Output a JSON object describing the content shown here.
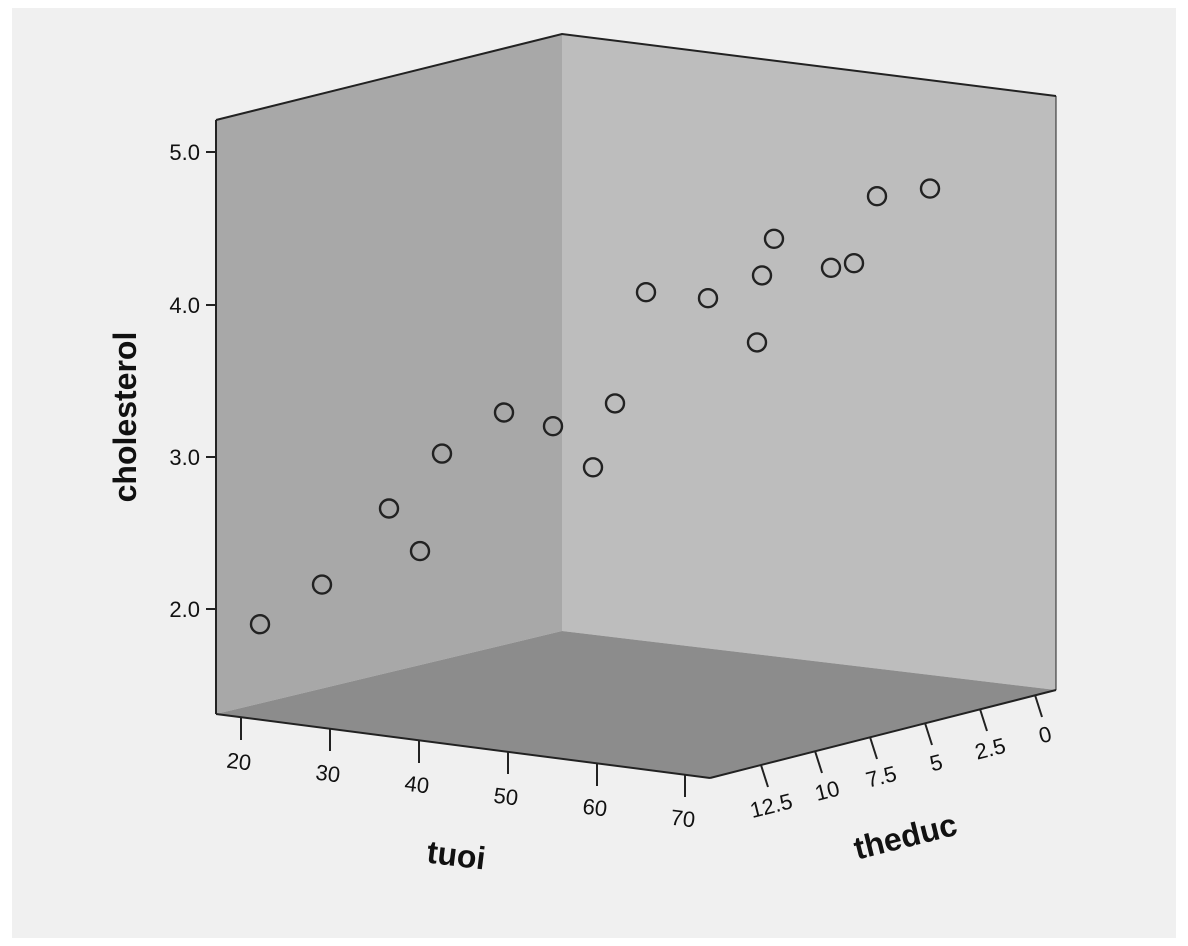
{
  "chart_data": {
    "type": "scatter3d",
    "title": "",
    "xlabel": "tuoi",
    "ylabel": "theduc",
    "zlabel": "cholesterol",
    "xlim": [
      15,
      75
    ],
    "ylim": [
      0,
      15
    ],
    "zlim": [
      1.5,
      5.2
    ],
    "x_ticks": [
      "20",
      "30",
      "40",
      "50",
      "60",
      "70"
    ],
    "y_ticks": [
      "12.5",
      "10",
      "7.5",
      "5",
      "2.5",
      "0"
    ],
    "z_ticks": [
      "2.0",
      "3.0",
      "4.0",
      "5.0"
    ],
    "grid": false,
    "series": [
      {
        "points": [
          {
            "screen_x": 260,
            "z": 1.9
          },
          {
            "screen_x": 322,
            "z": 2.16
          },
          {
            "screen_x": 389,
            "z": 2.66
          },
          {
            "screen_x": 420,
            "z": 2.38
          },
          {
            "screen_x": 442,
            "z": 3.02
          },
          {
            "screen_x": 504,
            "z": 3.29
          },
          {
            "screen_x": 553,
            "z": 3.2
          },
          {
            "screen_x": 593,
            "z": 2.93
          },
          {
            "screen_x": 615,
            "z": 3.35
          },
          {
            "screen_x": 646,
            "z": 4.08
          },
          {
            "screen_x": 708,
            "z": 4.04
          },
          {
            "screen_x": 757,
            "z": 3.75
          },
          {
            "screen_x": 762,
            "z": 4.19
          },
          {
            "screen_x": 774,
            "z": 4.43
          },
          {
            "screen_x": 831,
            "z": 4.24
          },
          {
            "screen_x": 854,
            "z": 4.27
          },
          {
            "screen_x": 877,
            "z": 4.71
          },
          {
            "screen_x": 930,
            "z": 4.76
          }
        ]
      }
    ],
    "colors": {
      "background": "#f0f0f0",
      "left_wall": "#a8a8a8",
      "back_wall": "#bdbdbd",
      "floor": "#8c8c8c",
      "marker_stroke": "#222222"
    }
  }
}
